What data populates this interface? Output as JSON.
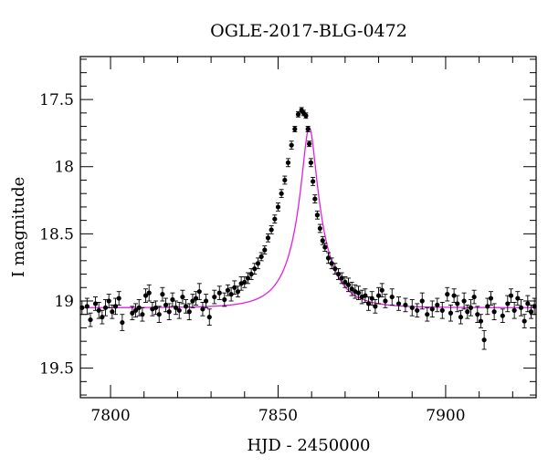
{
  "chart_data": {
    "type": "scatter",
    "title": "OGLE-2017-BLG-0472",
    "xlabel": "HJD - 2450000",
    "ylabel": "I magnitude",
    "xlim": [
      7791,
      7927
    ],
    "ylim": [
      19.72,
      17.18
    ],
    "y_inverted": true,
    "x_ticks": [
      7800,
      7850,
      7900
    ],
    "x_tick_labels": [
      "7800",
      "7850",
      "7900"
    ],
    "y_ticks": [
      17.5,
      18,
      18.5,
      19,
      19.5
    ],
    "y_tick_labels": [
      "17.5",
      "18",
      "18.5",
      "19",
      "19.5"
    ],
    "grid": false,
    "legend": "none",
    "colors": {
      "points": "#000000",
      "model": "#e020e0"
    },
    "model": {
      "type": "microlensing-pspl",
      "t0": 7859.3,
      "u0": 0.2,
      "tE": 9.5,
      "baseline_mag": 19.05,
      "blend_fraction": 0.6
    },
    "series": [
      {
        "x": [
          7791.5,
          7793.0,
          7794.0,
          7795.5,
          7796.5,
          7797.5,
          7798.5,
          7799.5,
          7800.5,
          7801.5,
          7802.5,
          7803.5,
          7806.5,
          7807.5,
          7808.5,
          7809.5,
          7810.5,
          7811.5,
          7812.5,
          7813.5,
          7814.5,
          7815.5,
          7816.5,
          7817.5,
          7818.5,
          7819.5,
          7820.5,
          7821.5,
          7822.5,
          7823.5,
          7824.5,
          7825.5,
          7826.5,
          7827.5,
          7828.5,
          7829.5,
          7831.0,
          7832.5,
          7834.0,
          7835.0,
          7836.0,
          7837.0,
          7838.0,
          7839.0,
          7840.0,
          7841.0,
          7842.0,
          7843.0,
          7844.0,
          7845.0,
          7846.0,
          7847.0,
          7848.0,
          7849.0,
          7850.0,
          7851.0,
          7852.0,
          7853.0,
          7854.0,
          7855.0,
          7856.0,
          7857.0,
          7857.6,
          7858.3,
          7858.9,
          7859.3,
          7859.8,
          7860.4,
          7861.0,
          7861.7,
          7862.5,
          7863.3,
          7864.0,
          7865.0,
          7866.0,
          7867.0,
          7868.0,
          7869.0,
          7870.0,
          7871.0,
          7872.0,
          7873.0,
          7874.0,
          7875.0,
          7876.0,
          7877.0,
          7878.0,
          7879.0,
          7880.0,
          7881.0,
          7882.0,
          7884.0,
          7886.0,
          7888.0,
          7890.0,
          7891.5,
          7893.0,
          7894.5,
          7896.0,
          7897.5,
          7899.0,
          7900.5,
          7901.5,
          7902.5,
          7903.5,
          7904.5,
          7905.5,
          7906.5,
          7907.5,
          7908.5,
          7909.5,
          7910.5,
          7911.5,
          7912.5,
          7913.5,
          7914.5,
          7917.0,
          7918.5,
          7919.5,
          7920.5,
          7921.5,
          7922.5,
          7923.5,
          7924.5,
          7925.5,
          7926.5
        ],
        "y": [
          19.05,
          19.04,
          19.14,
          19.02,
          19.07,
          19.12,
          19.05,
          19.0,
          19.08,
          19.04,
          18.98,
          19.16,
          19.09,
          19.07,
          19.05,
          19.1,
          18.96,
          18.94,
          19.06,
          19.05,
          19.1,
          18.95,
          19.03,
          19.08,
          18.99,
          19.05,
          19.07,
          18.97,
          19.04,
          19.08,
          19.0,
          18.98,
          18.93,
          19.06,
          19.0,
          19.12,
          18.97,
          18.94,
          18.99,
          18.92,
          18.95,
          18.9,
          18.93,
          18.87,
          18.86,
          18.83,
          18.8,
          18.76,
          18.72,
          18.67,
          18.62,
          18.53,
          18.47,
          18.39,
          18.3,
          18.2,
          18.1,
          17.97,
          17.84,
          17.72,
          17.61,
          17.58,
          17.6,
          17.62,
          17.72,
          17.83,
          17.97,
          18.11,
          18.24,
          18.36,
          18.46,
          18.55,
          18.6,
          18.68,
          18.72,
          18.76,
          18.8,
          18.83,
          18.86,
          18.88,
          18.91,
          18.93,
          18.94,
          18.97,
          18.96,
          19.02,
          18.98,
          19.04,
          18.96,
          18.92,
          19.0,
          18.97,
          19.02,
          19.03,
          19.05,
          19.07,
          19.0,
          19.1,
          19.06,
          19.03,
          19.07,
          18.95,
          19.09,
          18.96,
          19.02,
          19.12,
          19.0,
          19.08,
          19.05,
          18.97,
          19.1,
          19.15,
          19.29,
          19.04,
          18.98,
          19.08,
          19.11,
          19.02,
          18.96,
          19.07,
          18.98,
          19.05,
          19.15,
          19.02,
          19.08,
          19.04
        ],
        "err": [
          0.05,
          0.06,
          0.05,
          0.05,
          0.06,
          0.05,
          0.06,
          0.05,
          0.05,
          0.06,
          0.05,
          0.06,
          0.05,
          0.05,
          0.06,
          0.05,
          0.05,
          0.06,
          0.05,
          0.05,
          0.06,
          0.05,
          0.05,
          0.06,
          0.05,
          0.05,
          0.06,
          0.05,
          0.05,
          0.06,
          0.05,
          0.05,
          0.06,
          0.05,
          0.05,
          0.06,
          0.05,
          0.05,
          0.05,
          0.04,
          0.05,
          0.05,
          0.04,
          0.05,
          0.04,
          0.04,
          0.04,
          0.04,
          0.04,
          0.03,
          0.03,
          0.03,
          0.03,
          0.03,
          0.03,
          0.03,
          0.03,
          0.03,
          0.03,
          0.02,
          0.02,
          0.02,
          0.02,
          0.02,
          0.02,
          0.02,
          0.03,
          0.03,
          0.03,
          0.03,
          0.03,
          0.03,
          0.03,
          0.04,
          0.04,
          0.04,
          0.04,
          0.04,
          0.04,
          0.05,
          0.05,
          0.05,
          0.05,
          0.05,
          0.05,
          0.05,
          0.05,
          0.05,
          0.06,
          0.05,
          0.05,
          0.06,
          0.05,
          0.05,
          0.06,
          0.05,
          0.06,
          0.05,
          0.06,
          0.05,
          0.06,
          0.05,
          0.06,
          0.05,
          0.06,
          0.05,
          0.06,
          0.05,
          0.06,
          0.05,
          0.06,
          0.05,
          0.07,
          0.06,
          0.05,
          0.06,
          0.05,
          0.06,
          0.05,
          0.06,
          0.05,
          0.06,
          0.05,
          0.06,
          0.05,
          0.06
        ]
      }
    ]
  }
}
